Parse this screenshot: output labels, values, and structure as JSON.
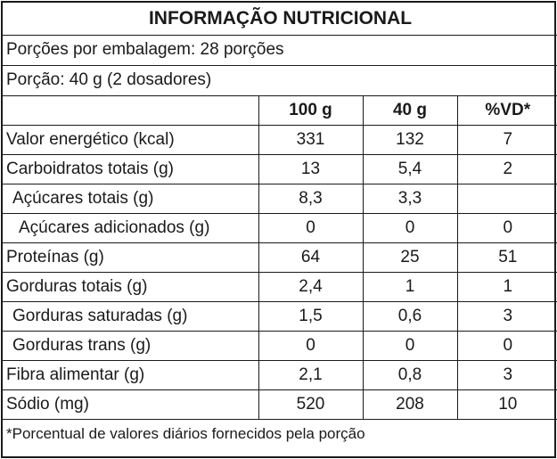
{
  "title": "INFORMAÇÃO NUTRICIONAL",
  "servings_per_package": "Porções por embalagem: 28 porções",
  "serving_size": "Porção: 40 g (2 dosadores)",
  "columns": [
    "",
    "100 g",
    "40 g",
    "%VD*"
  ],
  "rows": [
    {
      "name": "Valor energético (kcal)",
      "per100": "331",
      "per40": "132",
      "vd": "7"
    },
    {
      "name": "Carboidratos totais (g)",
      "per100": "13",
      "per40": "5,4",
      "vd": "2"
    },
    {
      "name": "Açúcares totais (g)",
      "per100": "8,3",
      "per40": "3,3",
      "vd": ""
    },
    {
      "name": "Açúcares adicionados (g)",
      "per100": "0",
      "per40": "0",
      "vd": "0"
    },
    {
      "name": "Proteínas (g)",
      "per100": "64",
      "per40": "25",
      "vd": "51"
    },
    {
      "name": "Gorduras totais (g)",
      "per100": "2,4",
      "per40": "1",
      "vd": "1"
    },
    {
      "name": "Gorduras saturadas (g)",
      "per100": "1,5",
      "per40": "0,6",
      "vd": "3"
    },
    {
      "name": "Gorduras trans (g)",
      "per100": "0",
      "per40": "0",
      "vd": "0"
    },
    {
      "name": "Fibra alimentar (g)",
      "per100": "2,1",
      "per40": "0,8",
      "vd": "3"
    },
    {
      "name": "Sódio (mg)",
      "per100": "520",
      "per40": "208",
      "vd": "10"
    }
  ],
  "footnote": "*Porcentual de valores diários fornecidos pela porção"
}
